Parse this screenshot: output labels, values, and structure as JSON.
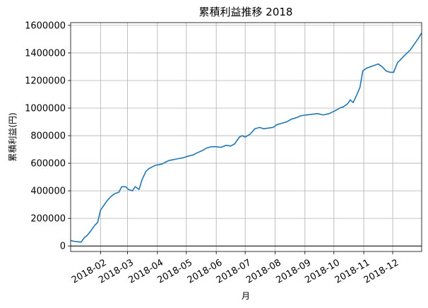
{
  "chart_data": {
    "type": "line",
    "title": "累積利益推移  2018",
    "xlabel": "月",
    "ylabel": "累積利益(円)",
    "xlim": [
      "2018-01-01",
      "2018-12-31"
    ],
    "ylim": [
      -40000,
      1620000
    ],
    "grid": true,
    "line_color": "#1f77b4",
    "zero_line": 0,
    "x_ticks": [
      "2018-02",
      "2018-03",
      "2018-04",
      "2018-05",
      "2018-06",
      "2018-07",
      "2018-08",
      "2018-09",
      "2018-10",
      "2018-11",
      "2018-12"
    ],
    "x_tick_dates": [
      "2018-02-01",
      "2018-03-01",
      "2018-04-01",
      "2018-05-01",
      "2018-06-01",
      "2018-07-01",
      "2018-08-01",
      "2018-09-01",
      "2018-10-01",
      "2018-11-01",
      "2018-12-01"
    ],
    "y_ticks": [
      0,
      200000,
      400000,
      600000,
      800000,
      1000000,
      1200000,
      1400000,
      1600000
    ],
    "series": [
      {
        "x": [
          "2018-01-01",
          "2018-01-05",
          "2018-01-09",
          "2018-01-12",
          "2018-01-15",
          "2018-01-18",
          "2018-01-22",
          "2018-01-26",
          "2018-01-29",
          "2018-02-01",
          "2018-02-05",
          "2018-02-08",
          "2018-02-12",
          "2018-02-16",
          "2018-02-20",
          "2018-02-23",
          "2018-02-27",
          "2018-03-02",
          "2018-03-06",
          "2018-03-09",
          "2018-03-13",
          "2018-03-16",
          "2018-03-20",
          "2018-03-23",
          "2018-03-27",
          "2018-03-30",
          "2018-04-03",
          "2018-04-06",
          "2018-04-10",
          "2018-04-13",
          "2018-04-17",
          "2018-04-20",
          "2018-04-24",
          "2018-04-28",
          "2018-05-02",
          "2018-05-08",
          "2018-05-12",
          "2018-05-17",
          "2018-05-22",
          "2018-05-27",
          "2018-06-01",
          "2018-06-06",
          "2018-06-11",
          "2018-06-16",
          "2018-06-20",
          "2018-06-25",
          "2018-06-28",
          "2018-07-01",
          "2018-07-06",
          "2018-07-11",
          "2018-07-16",
          "2018-07-20",
          "2018-07-25",
          "2018-07-30",
          "2018-08-03",
          "2018-08-08",
          "2018-08-13",
          "2018-08-18",
          "2018-08-23",
          "2018-08-28",
          "2018-09-02",
          "2018-09-08",
          "2018-09-14",
          "2018-09-20",
          "2018-09-26",
          "2018-10-02",
          "2018-10-07",
          "2018-10-11",
          "2018-10-15",
          "2018-10-18",
          "2018-10-21",
          "2018-10-25",
          "2018-10-28",
          "2018-10-31",
          "2018-11-04",
          "2018-11-08",
          "2018-11-12",
          "2018-11-16",
          "2018-11-20",
          "2018-11-24",
          "2018-11-28",
          "2018-12-02",
          "2018-12-06",
          "2018-12-09",
          "2018-12-13",
          "2018-12-16",
          "2018-12-19",
          "2018-12-22",
          "2018-12-25",
          "2018-12-28",
          "2018-12-31"
        ],
        "values": [
          40000,
          33000,
          30000,
          28000,
          60000,
          75000,
          110000,
          150000,
          170000,
          260000,
          300000,
          330000,
          360000,
          380000,
          390000,
          430000,
          430000,
          410000,
          400000,
          430000,
          410000,
          480000,
          540000,
          560000,
          575000,
          585000,
          590000,
          595000,
          610000,
          620000,
          625000,
          630000,
          635000,
          640000,
          650000,
          660000,
          675000,
          690000,
          710000,
          720000,
          720000,
          715000,
          730000,
          725000,
          740000,
          790000,
          800000,
          790000,
          810000,
          850000,
          860000,
          850000,
          855000,
          860000,
          880000,
          890000,
          900000,
          920000,
          930000,
          945000,
          950000,
          955000,
          960000,
          950000,
          960000,
          980000,
          1000000,
          1010000,
          1030000,
          1060000,
          1040000,
          1100000,
          1150000,
          1270000,
          1290000,
          1300000,
          1310000,
          1320000,
          1300000,
          1270000,
          1260000,
          1260000,
          1330000,
          1350000,
          1380000,
          1400000,
          1420000,
          1450000,
          1480000,
          1510000,
          1545000
        ]
      }
    ]
  }
}
